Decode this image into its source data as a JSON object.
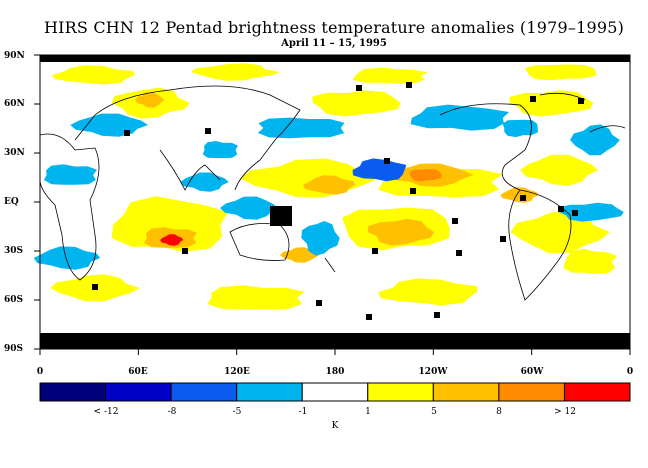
{
  "title": "HIRS CHN 12 Pentad brightness temperature anomalies (1979–1995)",
  "subtitle": "April 11 – 15, 1995",
  "lat_labels": [
    "90N",
    "60N",
    "30N",
    "EQ",
    "30S",
    "60S",
    "90S"
  ],
  "lon_labels": [
    "0",
    "60E",
    "120E",
    "180",
    "120W",
    "60W",
    "0"
  ],
  "colorbar": {
    "colors": [
      "#00007a",
      "#0000c8",
      "#0a5cf0",
      "#00b4f0",
      "#ffffff",
      "#ffff00",
      "#ffc000",
      "#ff8c00",
      "#ff0000"
    ],
    "labels": [
      "< -12",
      "-8",
      "-5",
      "-1",
      "1",
      "5",
      "8",
      "> 12"
    ],
    "unit": "K"
  },
  "map_colors": {
    "missing": "#000000",
    "coast": "#000000",
    "neg_strong": "#0a5cf0",
    "neg_weak": "#00b4f0",
    "pos_weak": "#ffff00",
    "pos_mid": "#ffc000",
    "pos_strong": "#ff8c00",
    "pos_extreme": "#ff0000"
  }
}
